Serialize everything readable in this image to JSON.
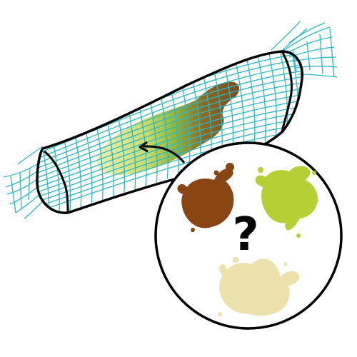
{
  "illustration": {
    "question_mark": "?",
    "colors": {
      "background": "#ffffff",
      "outline": "#000000",
      "mesh": "#2bb8c4",
      "stain_brown": "#8b4513",
      "stain_green": "#b5cf34",
      "stain_cream": "#ece0ab",
      "stain_gradient_green": "#8fb53a",
      "stain_gradient_brown": "#7a4a1c"
    },
    "elements": [
      {
        "name": "net-bag",
        "icon": "mesh-bag-icon"
      },
      {
        "name": "gradient-stain",
        "icon": "mixed-stain-icon"
      },
      {
        "name": "arrow",
        "icon": "curved-arrow-icon"
      },
      {
        "name": "magnify-circle",
        "icon": "circle-callout-icon"
      },
      {
        "name": "brown-splat",
        "icon": "brown-splat-icon"
      },
      {
        "name": "green-splat",
        "icon": "green-splat-icon"
      },
      {
        "name": "cream-splat",
        "icon": "cream-splat-icon"
      }
    ]
  }
}
